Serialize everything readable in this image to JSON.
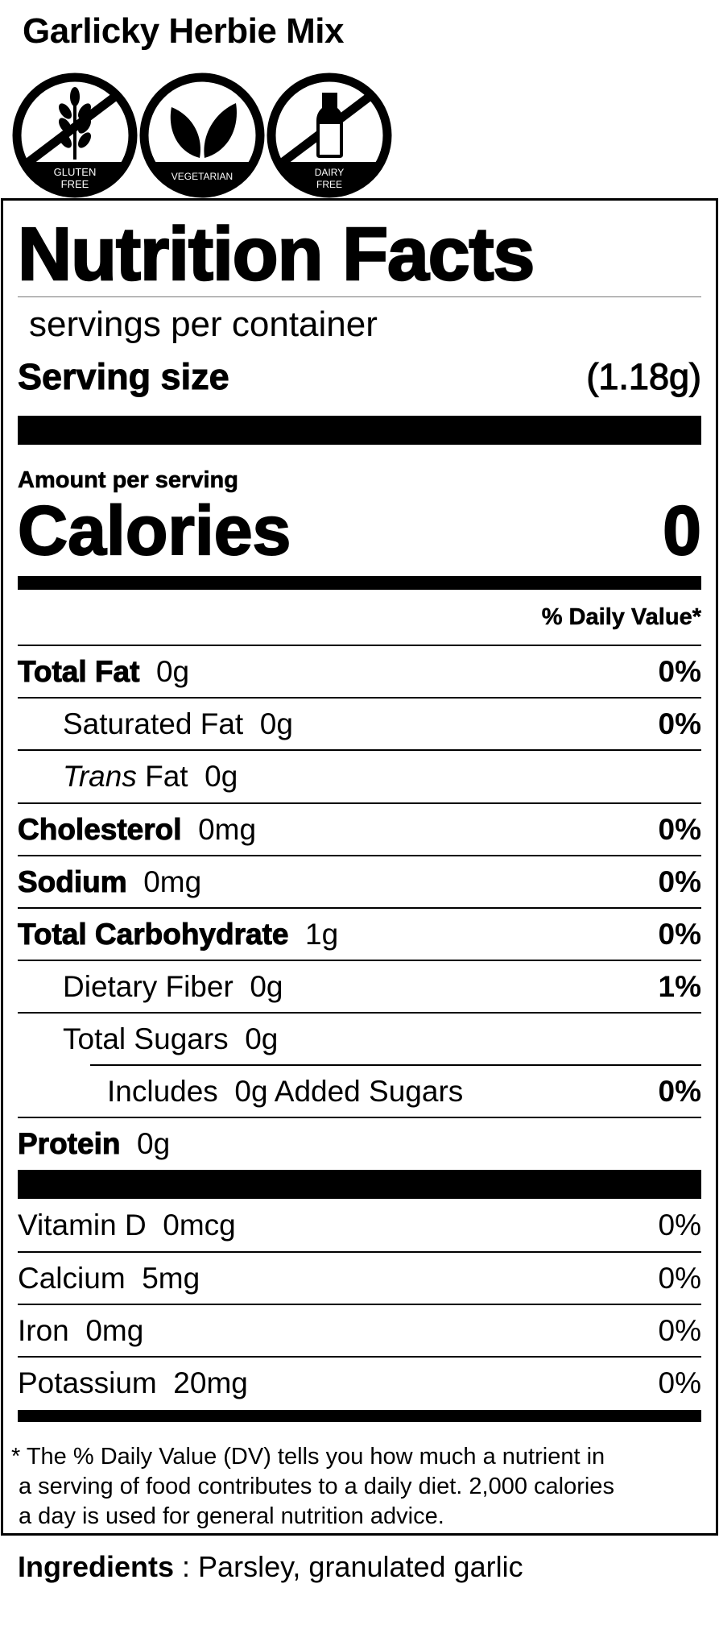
{
  "product_title": "Garlicky Herbie Mix",
  "badges": [
    {
      "icon": "wheat-icon",
      "line1": "GLUTEN",
      "line2": "FREE"
    },
    {
      "icon": "leaves-icon",
      "line1": "VEGETARIAN",
      "line2": ""
    },
    {
      "icon": "milk-bottle-icon",
      "line1": "DAIRY",
      "line2": "FREE"
    }
  ],
  "label": {
    "heading": "Nutrition Facts",
    "servings_per_container": "servings per container",
    "serving_size_label": "Serving size",
    "serving_size_value": "(1.18g)",
    "amount_per_serving": "Amount per serving",
    "calories_label": "Calories",
    "calories_value": "0",
    "dv_header": "% Daily Value*",
    "nutrients": [
      {
        "name": "Total Fat",
        "amount": "0g",
        "dv": "0%"
      },
      {
        "name": "Saturated Fat",
        "amount": "0g",
        "dv": "0%"
      },
      {
        "name_italic": "Trans",
        "name": "Fat",
        "amount": "0g",
        "dv": ""
      },
      {
        "name": "Cholesterol",
        "amount": "0mg",
        "dv": "0%"
      },
      {
        "name": "Sodium",
        "amount": "0mg",
        "dv": "0%"
      },
      {
        "name": "Total Carbohydrate",
        "amount": "1g",
        "dv": "0%"
      },
      {
        "name": "Dietary Fiber",
        "amount": "0g",
        "dv": "1%"
      },
      {
        "name": "Total Sugars",
        "amount": "0g",
        "dv": ""
      },
      {
        "name": "Includes",
        "amount": "0g Added Sugars",
        "dv": "0%"
      },
      {
        "name": "Protein",
        "amount": "0g",
        "dv": ""
      }
    ],
    "vitamins": [
      {
        "name": "Vitamin D",
        "amount": "0mcg",
        "dv": "0%"
      },
      {
        "name": "Calcium",
        "amount": "5mg",
        "dv": "0%"
      },
      {
        "name": "Iron",
        "amount": "0mg",
        "dv": "0%"
      },
      {
        "name": "Potassium",
        "amount": "20mg",
        "dv": "0%"
      }
    ],
    "footnote": [
      "* The % Daily Value (DV) tells you how much a nutrient in",
      "a serving of food contributes to a daily diet. 2,000 calories",
      "a day is used for general nutrition advice."
    ]
  },
  "ingredients": {
    "label": "Ingredients",
    "separator": " : ",
    "text": "Parsley, granulated garlic"
  }
}
